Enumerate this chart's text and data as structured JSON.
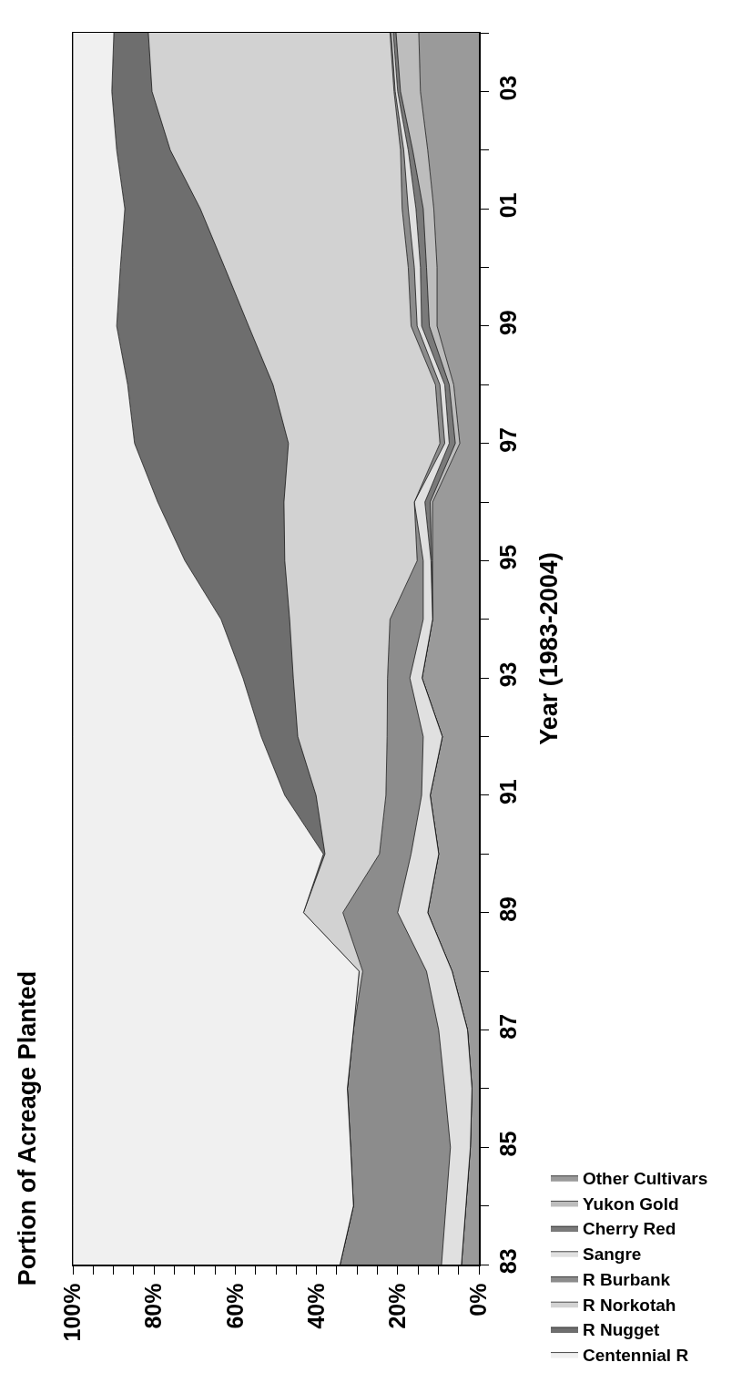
{
  "chart_data": {
    "type": "area",
    "stacked": true,
    "orientation": "horizontal",
    "title": "Portion of Acreage Planted",
    "ylabel": "Year (1983-2004)",
    "x": [
      1983,
      1984,
      1985,
      1986,
      1987,
      1988,
      1989,
      1990,
      1991,
      1992,
      1993,
      1994,
      1995,
      1996,
      1997,
      1998,
      1999,
      2000,
      2001,
      2002,
      2003,
      2004
    ],
    "series": [
      {
        "name": "Other Cultivars",
        "color": "#9a9a9a",
        "values": [
          4.3,
          3.2,
          2.1,
          1.7,
          2.8,
          6.6,
          12.6,
          9.9,
          12.0,
          9.0,
          14.0,
          11.4,
          11.4,
          11.4,
          4.7,
          6.2,
          10.3,
          10.3,
          11.1,
          12.6,
          14.4,
          14.8
        ]
      },
      {
        "name": "Yukon Gold",
        "color": "#bdbdbd",
        "values": [
          0,
          0,
          0,
          0,
          0,
          0,
          0,
          0,
          0,
          0,
          0,
          0,
          0.2,
          0.6,
          1.1,
          1.1,
          1.9,
          2.6,
          2.6,
          3.7,
          4.9,
          5.6
        ]
      },
      {
        "name": "Cherry Red",
        "color": "#7a7a7a",
        "values": [
          0,
          0,
          0,
          0,
          0,
          0,
          0,
          0,
          0,
          0,
          0,
          0,
          0.2,
          1.3,
          1.5,
          1.1,
          1.9,
          1.5,
          1.8,
          1.1,
          0.7,
          0.7
        ]
      },
      {
        "name": "Sangre",
        "color": "#e0e0e0",
        "values": [
          4.9,
          4.9,
          4.9,
          6.7,
          7.1,
          6.3,
          7.4,
          6.8,
          2.1,
          4.7,
          3.0,
          2.3,
          1.9,
          2.6,
          1.1,
          1.2,
          1.1,
          1.5,
          1.9,
          1.1,
          0.6,
          0.5
        ]
      },
      {
        "name": "R Burbank",
        "color": "#8c8c8c",
        "values": [
          25.0,
          22.8,
          24.6,
          24.0,
          21.0,
          15.7,
          13.5,
          7.8,
          8.8,
          8.9,
          5.5,
          8.2,
          1.5,
          0,
          1.2,
          1.1,
          1.5,
          1.5,
          1.5,
          0.8,
          0.3,
          0.3
        ]
      },
      {
        "name": "R Norkotah",
        "color": "#d2d2d2",
        "values": [
          0,
          0,
          0,
          0,
          0,
          0.9,
          9.7,
          13.4,
          17.2,
          22.0,
          23.2,
          24.7,
          32.6,
          32.1,
          37.3,
          40.0,
          40.0,
          45.2,
          49.7,
          56.7,
          59.6,
          59.5
        ]
      },
      {
        "name": "R Nugget",
        "color": "#6e6e6e",
        "values": [
          0,
          0,
          0,
          0,
          0,
          0,
          0,
          0.4,
          7.7,
          9.0,
          12.4,
          16.9,
          24.6,
          31.1,
          37.9,
          35.8,
          32.5,
          25.7,
          18.6,
          13.2,
          9.9,
          8.5
        ]
      },
      {
        "name": "Centennial R",
        "color": "#f0f0f0",
        "values": [
          65.8,
          69.1,
          68.4,
          67.6,
          69.1,
          70.5,
          56.8,
          61.7,
          52.2,
          46.4,
          41.9,
          36.5,
          27.6,
          20.9,
          15.2,
          13.5,
          10.8,
          11.7,
          12.8,
          10.8,
          9.6,
          10.1
        ]
      }
    ],
    "xlim": [
      100,
      0
    ],
    "xticks": [
      {
        "value": 100,
        "label": "100%"
      },
      {
        "value": 95,
        "label": null
      },
      {
        "value": 90,
        "label": null
      },
      {
        "value": 85,
        "label": null
      },
      {
        "value": 80,
        "label": "80%"
      },
      {
        "value": 75,
        "label": null
      },
      {
        "value": 70,
        "label": null
      },
      {
        "value": 65,
        "label": null
      },
      {
        "value": 60,
        "label": "60%"
      },
      {
        "value": 55,
        "label": null
      },
      {
        "value": 50,
        "label": null
      },
      {
        "value": 45,
        "label": null
      },
      {
        "value": 40,
        "label": "40%"
      },
      {
        "value": 35,
        "label": null
      },
      {
        "value": 30,
        "label": null
      },
      {
        "value": 25,
        "label": null
      },
      {
        "value": 20,
        "label": "20%"
      },
      {
        "value": 15,
        "label": null
      },
      {
        "value": 10,
        "label": null
      },
      {
        "value": 5,
        "label": null
      },
      {
        "value": 0,
        "label": "0%"
      }
    ],
    "ylim": [
      1983,
      2004
    ],
    "yticks": [
      {
        "value": 1983,
        "label": "83"
      },
      {
        "value": 1984,
        "label": null
      },
      {
        "value": 1985,
        "label": "85"
      },
      {
        "value": 1986,
        "label": null
      },
      {
        "value": 1987,
        "label": "87"
      },
      {
        "value": 1988,
        "label": null
      },
      {
        "value": 1989,
        "label": "89"
      },
      {
        "value": 1990,
        "label": null
      },
      {
        "value": 1991,
        "label": "91"
      },
      {
        "value": 1992,
        "label": null
      },
      {
        "value": 1993,
        "label": "93"
      },
      {
        "value": 1994,
        "label": null
      },
      {
        "value": 1995,
        "label": "95"
      },
      {
        "value": 1996,
        "label": null
      },
      {
        "value": 1997,
        "label": "97"
      },
      {
        "value": 1998,
        "label": null
      },
      {
        "value": 1999,
        "label": "99"
      },
      {
        "value": 2000,
        "label": null
      },
      {
        "value": 2001,
        "label": "01"
      },
      {
        "value": 2002,
        "label": null
      },
      {
        "value": 2003,
        "label": "03"
      },
      {
        "value": 2004,
        "label": null
      }
    ],
    "grid": false,
    "legend": "right"
  }
}
